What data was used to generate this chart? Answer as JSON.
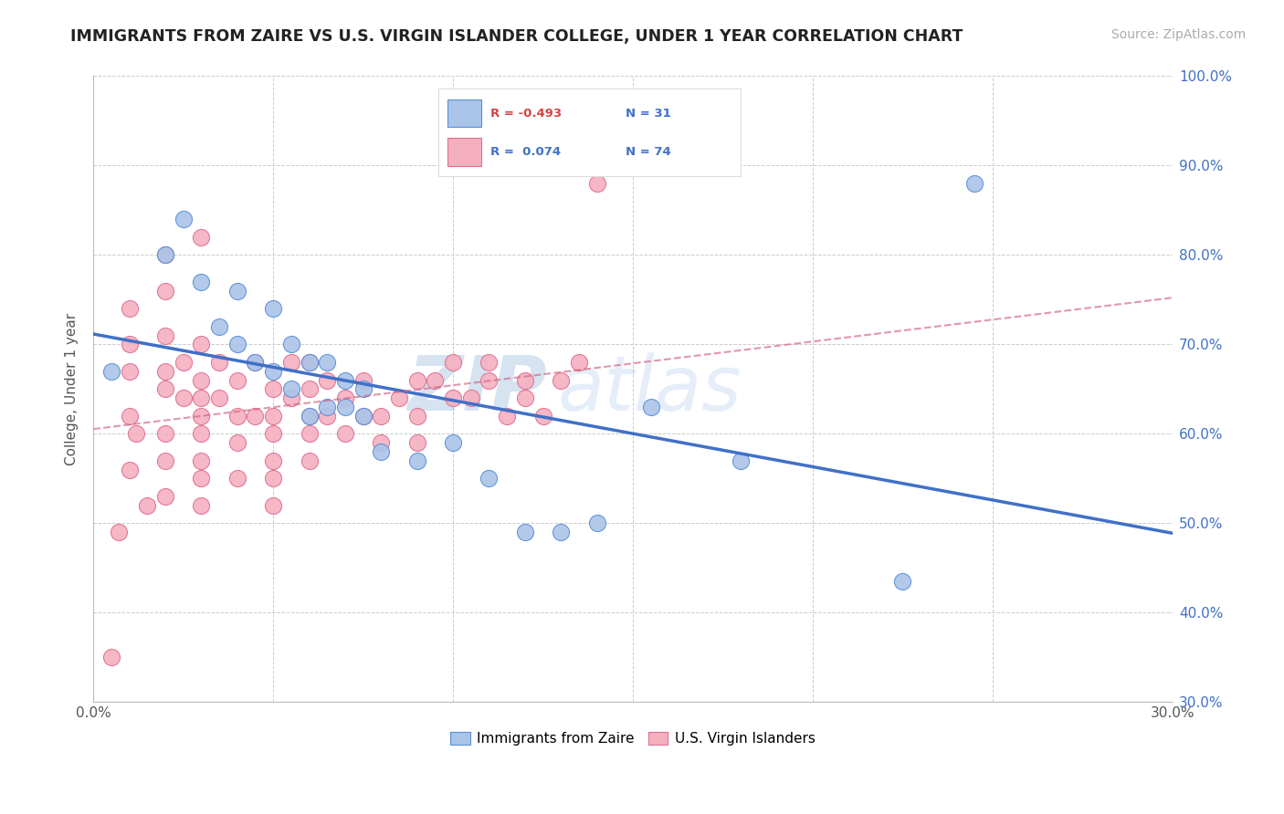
{
  "title": "IMMIGRANTS FROM ZAIRE VS U.S. VIRGIN ISLANDER COLLEGE, UNDER 1 YEAR CORRELATION CHART",
  "source": "Source: ZipAtlas.com",
  "ylabel": "College, Under 1 year",
  "xlim": [
    0.0,
    0.3
  ],
  "ylim": [
    0.3,
    1.0
  ],
  "x_ticks": [
    0.0,
    0.05,
    0.1,
    0.15,
    0.2,
    0.25,
    0.3
  ],
  "x_tick_labels": [
    "0.0%",
    "",
    "",
    "",
    "",
    "",
    "30.0%"
  ],
  "y_ticks": [
    0.3,
    0.4,
    0.5,
    0.6,
    0.7,
    0.8,
    0.9,
    1.0
  ],
  "y_tick_labels": [
    "30.0%",
    "40.0%",
    "50.0%",
    "60.0%",
    "70.0%",
    "80.0%",
    "90.0%",
    "100.0%"
  ],
  "blue_R": "-0.493",
  "blue_N": "31",
  "pink_R": "0.074",
  "pink_N": "74",
  "blue_color": "#aac4e8",
  "pink_color": "#f5b0c0",
  "blue_edge_color": "#5a8fd8",
  "pink_edge_color": "#e07090",
  "blue_line_color": "#4070c8",
  "pink_line_color": "#d06080",
  "legend_blue_label": "Immigrants from Zaire",
  "legend_pink_label": "U.S. Virgin Islanders",
  "watermark_zip": "ZIP",
  "watermark_atlas": "atlas",
  "blue_scatter_x": [
    0.005,
    0.02,
    0.025,
    0.03,
    0.035,
    0.04,
    0.04,
    0.045,
    0.05,
    0.05,
    0.055,
    0.055,
    0.06,
    0.06,
    0.065,
    0.065,
    0.07,
    0.07,
    0.075,
    0.075,
    0.08,
    0.09,
    0.1,
    0.11,
    0.12,
    0.13,
    0.14,
    0.155,
    0.18,
    0.225,
    0.245
  ],
  "blue_scatter_y": [
    0.67,
    0.8,
    0.84,
    0.77,
    0.72,
    0.76,
    0.7,
    0.68,
    0.74,
    0.67,
    0.65,
    0.7,
    0.68,
    0.62,
    0.68,
    0.63,
    0.66,
    0.63,
    0.65,
    0.62,
    0.58,
    0.57,
    0.59,
    0.55,
    0.49,
    0.49,
    0.5,
    0.63,
    0.57,
    0.435,
    0.88
  ],
  "pink_scatter_x": [
    0.005,
    0.007,
    0.01,
    0.01,
    0.01,
    0.01,
    0.01,
    0.012,
    0.015,
    0.02,
    0.02,
    0.02,
    0.02,
    0.02,
    0.02,
    0.02,
    0.02,
    0.025,
    0.025,
    0.03,
    0.03,
    0.03,
    0.03,
    0.03,
    0.03,
    0.03,
    0.03,
    0.03,
    0.035,
    0.035,
    0.04,
    0.04,
    0.04,
    0.04,
    0.045,
    0.045,
    0.05,
    0.05,
    0.05,
    0.05,
    0.05,
    0.05,
    0.055,
    0.055,
    0.06,
    0.06,
    0.06,
    0.06,
    0.06,
    0.065,
    0.065,
    0.07,
    0.07,
    0.075,
    0.075,
    0.08,
    0.08,
    0.085,
    0.09,
    0.09,
    0.09,
    0.095,
    0.1,
    0.1,
    0.105,
    0.11,
    0.11,
    0.115,
    0.12,
    0.12,
    0.125,
    0.13,
    0.135,
    0.14
  ],
  "pink_scatter_y": [
    0.35,
    0.49,
    0.56,
    0.62,
    0.67,
    0.7,
    0.74,
    0.6,
    0.52,
    0.67,
    0.71,
    0.65,
    0.76,
    0.8,
    0.6,
    0.57,
    0.53,
    0.68,
    0.64,
    0.7,
    0.66,
    0.64,
    0.62,
    0.6,
    0.57,
    0.55,
    0.52,
    0.82,
    0.68,
    0.64,
    0.66,
    0.62,
    0.59,
    0.55,
    0.62,
    0.68,
    0.65,
    0.62,
    0.6,
    0.57,
    0.55,
    0.52,
    0.64,
    0.68,
    0.68,
    0.65,
    0.62,
    0.6,
    0.57,
    0.66,
    0.62,
    0.64,
    0.6,
    0.66,
    0.62,
    0.62,
    0.59,
    0.64,
    0.66,
    0.62,
    0.59,
    0.66,
    0.68,
    0.64,
    0.64,
    0.68,
    0.66,
    0.62,
    0.66,
    0.64,
    0.62,
    0.66,
    0.68,
    0.88
  ]
}
